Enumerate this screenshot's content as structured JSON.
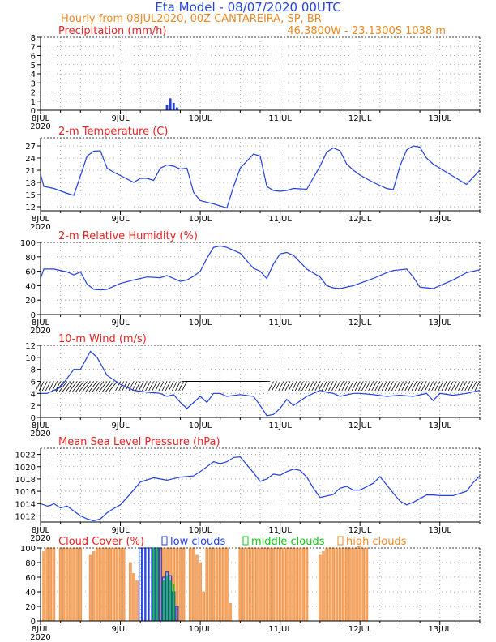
{
  "header": {
    "title": "Eta Model - 08/07/2020 00UTC",
    "subtitle": "Hourly from 08JUL2020, 00Z  CANTAREIRA, SP, BR",
    "location": "46.3800W - 23.1300S    1038  m"
  },
  "colors": {
    "title": "#2244dd",
    "orange": "#ee8822",
    "red": "#ee2222",
    "series": "#1f3fe0",
    "green": "#11cc11",
    "cloud_fill": "#f4a86a",
    "cloud_edge": "#ee8833",
    "wind": "#000000"
  },
  "x_axis": {
    "ticks": [
      {
        "hour": 0,
        "label": "8JUL",
        "sub": "2020"
      },
      {
        "hour": 24,
        "label": "9JUL",
        "sub": ""
      },
      {
        "hour": 48,
        "label": "10JUL",
        "sub": ""
      },
      {
        "hour": 72,
        "label": "11JUL",
        "sub": ""
      },
      {
        "hour": 96,
        "label": "12JUL",
        "sub": ""
      },
      {
        "hour": 120,
        "label": "13JUL",
        "sub": ""
      }
    ],
    "max_hour": 132
  },
  "chart_data": [
    {
      "type": "bar",
      "title": "Precipitation (mm/h)",
      "ylim": [
        0,
        8
      ],
      "yticks": [
        0,
        1,
        2,
        3,
        4,
        5,
        6,
        7,
        8
      ],
      "x_hours": [
        38,
        39,
        40,
        41
      ],
      "values": [
        0.6,
        1.3,
        0.8,
        0.3
      ]
    },
    {
      "type": "line",
      "title": "2-m Temperature (C)",
      "ylim": [
        11,
        29
      ],
      "yticks": [
        12,
        15,
        18,
        21,
        24,
        27
      ],
      "x": [
        0,
        1,
        4,
        8,
        10,
        14,
        16,
        18,
        20,
        22,
        24,
        28,
        30,
        32,
        34,
        36,
        38,
        40,
        42,
        44,
        46,
        48,
        52,
        56,
        58,
        60,
        64,
        66,
        68,
        70,
        72,
        74,
        76,
        80,
        84,
        86,
        88,
        90,
        92,
        94,
        96,
        100,
        104,
        106,
        108,
        110,
        112,
        114,
        116,
        118,
        120,
        124,
        128,
        132
      ],
      "y": [
        20,
        17,
        16.5,
        15.3,
        14.8,
        24.5,
        25.7,
        25.8,
        21.5,
        20.5,
        19.7,
        18,
        19,
        19,
        18.5,
        21.5,
        22.3,
        22,
        21.3,
        21.5,
        15.5,
        13.5,
        12.7,
        11.7,
        17,
        21.5,
        25,
        24.5,
        17,
        16,
        15.8,
        16,
        16.5,
        16.3,
        22,
        25.5,
        26.5,
        25.8,
        22.5,
        21,
        19.8,
        18,
        16.5,
        16.2,
        22,
        26,
        27,
        26.7,
        24,
        22.5,
        21.5,
        19.5,
        17.5,
        21
      ]
    },
    {
      "type": "line",
      "title": "2-m Relative Humidity (%)",
      "ylim": [
        0,
        100
      ],
      "yticks": [
        0,
        20,
        40,
        60,
        80,
        100
      ],
      "x": [
        0,
        1,
        4,
        8,
        10,
        12,
        14,
        16,
        18,
        20,
        24,
        28,
        32,
        36,
        38,
        40,
        42,
        44,
        46,
        48,
        50,
        52,
        54,
        56,
        60,
        64,
        66,
        68,
        70,
        72,
        74,
        76,
        80,
        84,
        86,
        88,
        90,
        94,
        100,
        104,
        106,
        108,
        110,
        112,
        114,
        116,
        118,
        120,
        124,
        128,
        132
      ],
      "y": [
        50,
        63,
        63,
        59,
        55,
        59,
        42,
        35,
        34,
        35,
        43,
        48,
        52,
        51,
        54,
        50,
        46,
        48,
        53,
        60,
        78,
        93,
        95,
        93,
        85,
        64,
        60,
        50,
        70,
        84,
        86,
        82,
        63,
        52,
        40,
        37,
        36,
        40,
        50,
        58,
        61,
        62,
        63,
        52,
        38,
        37,
        36,
        40,
        48,
        58,
        62
      ]
    },
    {
      "type": "line",
      "title": "10-m Wind (m/s)",
      "ylim": [
        0,
        12
      ],
      "yticks": [
        0,
        2,
        4,
        6,
        8,
        10,
        12
      ],
      "x": [
        0,
        2,
        6,
        10,
        12,
        14,
        15,
        17,
        20,
        24,
        28,
        32,
        36,
        38,
        40,
        42,
        44,
        46,
        48,
        50,
        52,
        54,
        56,
        60,
        64,
        66,
        68,
        70,
        72,
        74,
        76,
        80,
        84,
        86,
        88,
        90,
        94,
        96,
        100,
        104,
        108,
        112,
        116,
        118,
        120,
        124,
        128,
        132
      ],
      "y": [
        4,
        4,
        5,
        8,
        8,
        10,
        11,
        10,
        7,
        5.5,
        4.5,
        4.2,
        4,
        3.5,
        3.8,
        2.5,
        1.5,
        2.5,
        3.5,
        2.5,
        4,
        4,
        3.5,
        3.8,
        3.5,
        2,
        0.3,
        0.5,
        1.5,
        3,
        2,
        3.5,
        4.5,
        4.2,
        4,
        3.5,
        4,
        4,
        3.8,
        3.5,
        3.7,
        3.5,
        4,
        2.8,
        4,
        3.7,
        4,
        4.5
      ],
      "barb_y": 6
    },
    {
      "type": "line",
      "title": "Mean Sea Level Pressure (hPa)",
      "ylim": [
        1011,
        1023
      ],
      "yticks": [
        1012,
        1014,
        1016,
        1018,
        1020,
        1022
      ],
      "x": [
        0,
        2,
        3,
        4,
        6,
        8,
        10,
        12,
        14,
        16,
        18,
        20,
        22,
        24,
        26,
        30,
        34,
        38,
        42,
        46,
        48,
        50,
        52,
        54,
        56,
        58,
        60,
        64,
        66,
        68,
        70,
        72,
        74,
        76,
        78,
        80,
        82,
        84,
        88,
        90,
        92,
        94,
        96,
        100,
        102,
        106,
        108,
        110,
        112,
        114,
        116,
        118,
        120,
        124,
        128,
        130,
        132
      ],
      "y": [
        1014,
        1013.6,
        1013.7,
        1014,
        1013.3,
        1013.6,
        1012.8,
        1012,
        1011.5,
        1011.2,
        1011.5,
        1012.5,
        1013.2,
        1013.8,
        1015,
        1017.5,
        1018.2,
        1017.8,
        1018.3,
        1018.5,
        1019.2,
        1020,
        1020.8,
        1020.5,
        1020.8,
        1021.5,
        1021.6,
        1019,
        1017.6,
        1018,
        1018.8,
        1018.6,
        1019.2,
        1019.6,
        1019.4,
        1018.3,
        1016.5,
        1015,
        1015.5,
        1016.5,
        1016.8,
        1016.2,
        1016.2,
        1017.3,
        1018.4,
        1015.7,
        1014.4,
        1013.8,
        1014.2,
        1014.8,
        1015.4,
        1015.4,
        1015.3,
        1015.3,
        1016,
        1017.4,
        1018.5
      ]
    },
    {
      "type": "bar",
      "title": "Cloud Cover (%)",
      "legend": [
        "low clouds",
        "middle clouds",
        "high clouds"
      ],
      "ylim": [
        0,
        100
      ],
      "yticks": [
        0,
        20,
        40,
        60,
        80,
        100
      ],
      "high": [
        [
          1,
          95
        ],
        [
          2,
          100
        ],
        [
          3,
          100
        ],
        [
          4,
          100
        ],
        [
          6,
          100
        ],
        [
          7,
          100
        ],
        [
          8,
          100
        ],
        [
          9,
          100
        ],
        [
          10,
          100
        ],
        [
          11,
          100
        ],
        [
          12,
          100
        ],
        [
          15,
          90
        ],
        [
          16,
          95
        ],
        [
          17,
          100
        ],
        [
          18,
          100
        ],
        [
          19,
          100
        ],
        [
          20,
          100
        ],
        [
          21,
          100
        ],
        [
          22,
          100
        ],
        [
          23,
          100
        ],
        [
          24,
          100
        ],
        [
          25,
          100
        ],
        [
          27,
          80
        ],
        [
          28,
          65
        ],
        [
          29,
          55
        ],
        [
          35,
          100
        ],
        [
          36,
          100
        ],
        [
          37,
          100
        ],
        [
          38,
          100
        ],
        [
          39,
          100
        ],
        [
          40,
          100
        ],
        [
          41,
          100
        ],
        [
          42,
          100
        ],
        [
          43,
          100
        ],
        [
          45,
          100
        ],
        [
          46,
          100
        ],
        [
          47,
          90
        ],
        [
          48,
          80
        ],
        [
          49,
          40
        ],
        [
          50,
          100
        ],
        [
          51,
          100
        ],
        [
          52,
          100
        ],
        [
          53,
          100
        ],
        [
          54,
          100
        ],
        [
          55,
          100
        ],
        [
          56,
          100
        ],
        [
          57,
          24
        ],
        [
          60,
          100
        ],
        [
          61,
          100
        ],
        [
          62,
          100
        ],
        [
          63,
          100
        ],
        [
          64,
          100
        ],
        [
          65,
          100
        ],
        [
          66,
          100
        ],
        [
          67,
          100
        ],
        [
          68,
          100
        ],
        [
          69,
          100
        ],
        [
          70,
          100
        ],
        [
          71,
          100
        ],
        [
          72,
          100
        ],
        [
          73,
          100
        ],
        [
          74,
          100
        ],
        [
          75,
          100
        ],
        [
          76,
          100
        ],
        [
          77,
          100
        ],
        [
          78,
          100
        ],
        [
          79,
          100
        ],
        [
          80,
          100
        ],
        [
          84,
          90
        ],
        [
          85,
          95
        ],
        [
          86,
          100
        ],
        [
          87,
          100
        ],
        [
          88,
          100
        ],
        [
          89,
          100
        ],
        [
          90,
          100
        ],
        [
          91,
          100
        ],
        [
          92,
          100
        ],
        [
          93,
          100
        ],
        [
          94,
          100
        ],
        [
          95,
          100
        ],
        [
          96,
          100
        ],
        [
          97,
          100
        ],
        [
          98,
          100
        ]
      ],
      "low": [
        [
          30,
          100
        ],
        [
          31,
          100
        ],
        [
          32,
          100
        ],
        [
          33,
          100
        ],
        [
          34,
          100
        ],
        [
          35,
          100
        ],
        [
          36,
          100
        ],
        [
          37,
          60
        ],
        [
          38,
          67
        ],
        [
          39,
          62
        ],
        [
          40,
          40
        ],
        [
          41,
          20
        ]
      ],
      "middle": [
        [
          34,
          100
        ],
        [
          35,
          100
        ],
        [
          37,
          55
        ],
        [
          38,
          62
        ],
        [
          39,
          55
        ],
        [
          40,
          50
        ]
      ]
    }
  ]
}
